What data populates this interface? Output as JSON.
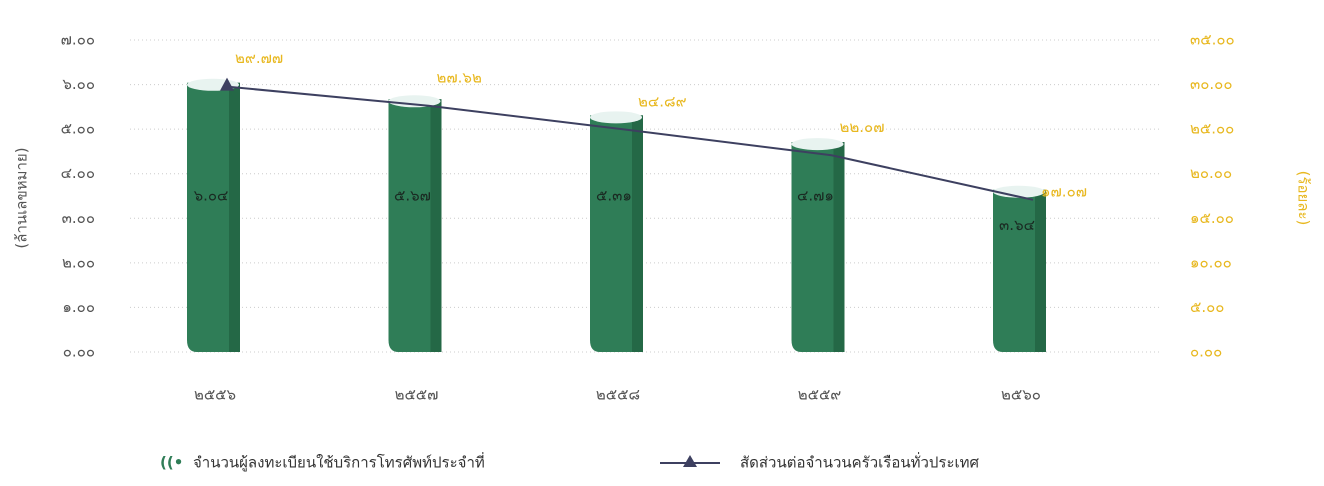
{
  "chart_data": {
    "type": "bar",
    "categories": [
      "๒๕๕๖",
      "๒๕๕๗",
      "๒๕๕๘",
      "๒๕๕๙",
      "๒๕๖๐"
    ],
    "ylabel": "(ล้านเลขหมาย)",
    "y2label": "(ร้อยละ)",
    "ylim": [
      0,
      7
    ],
    "yticks": [
      {
        "value": 0,
        "label": "๐.๐๐"
      },
      {
        "value": 1,
        "label": "๑.๐๐"
      },
      {
        "value": 2,
        "label": "๒.๐๐"
      },
      {
        "value": 3,
        "label": "๓.๐๐"
      },
      {
        "value": 4,
        "label": "๔.๐๐"
      },
      {
        "value": 5,
        "label": "๕.๐๐"
      },
      {
        "value": 6,
        "label": "๖.๐๐"
      },
      {
        "value": 7,
        "label": "๗.๐๐"
      }
    ],
    "y2lim": [
      0,
      35
    ],
    "y2ticks": [
      {
        "value": 0,
        "label": "๐.๐๐"
      },
      {
        "value": 5,
        "label": "๕.๐๐"
      },
      {
        "value": 10,
        "label": "๑๐.๐๐"
      },
      {
        "value": 15,
        "label": "๑๕.๐๐"
      },
      {
        "value": 20,
        "label": "๒๐.๐๐"
      },
      {
        "value": 25,
        "label": "๒๕.๐๐"
      },
      {
        "value": 30,
        "label": "๓๐.๐๐"
      },
      {
        "value": 35,
        "label": "๓๕.๐๐"
      }
    ],
    "grid": true,
    "series": [
      {
        "name": "จำนวนผู้ลงทะเบียนใช้บริการโทรศัพท์ประจำที่",
        "type": "bar",
        "color": "#2f7d57",
        "values": [
          6.04,
          5.67,
          5.31,
          4.71,
          3.64
        ],
        "value_labels": [
          "๖.๐๔",
          "๕.๖๗",
          "๕.๓๑",
          "๔.๗๑",
          "๓.๖๔"
        ]
      },
      {
        "name": "สัดส่วนต่อจำนวนครัวเรือนทั่วประเทศ",
        "type": "line",
        "axis": "y2",
        "color": "#3d4060",
        "values": [
          29.77,
          27.62,
          24.89,
          22.07,
          17.07
        ],
        "value_labels": [
          "๒๙.๗๗",
          "๒๗.๖๒",
          "๒๔.๘๙",
          "๒๒.๐๗",
          "๑๗.๐๗"
        ]
      }
    ]
  }
}
